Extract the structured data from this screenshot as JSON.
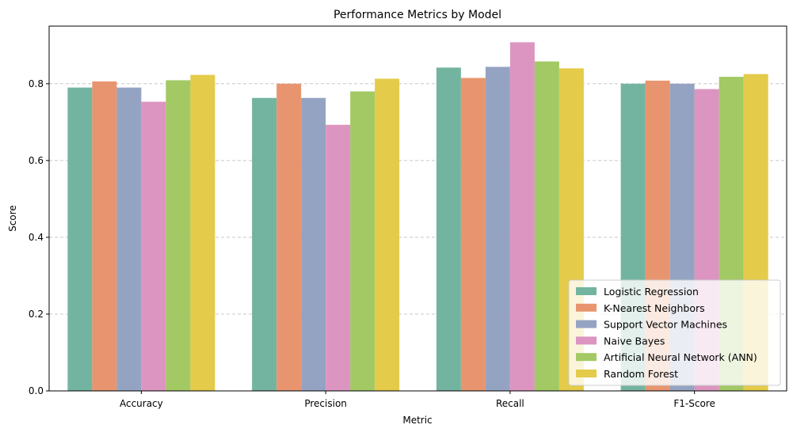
{
  "chart_data": {
    "type": "bar",
    "title": "Performance Metrics by Model",
    "xlabel": "Metric",
    "ylabel": "Score",
    "ylim": [
      0,
      0.95
    ],
    "yticks": [
      "0.0",
      "0.2",
      "0.4",
      "0.6",
      "0.8"
    ],
    "ytick_values": [
      0,
      0.2,
      0.4,
      0.6,
      0.8
    ],
    "grid": "y-dashed",
    "legend_position": "lower-right",
    "categories": [
      "Accuracy",
      "Precision",
      "Recall",
      "F1-Score"
    ],
    "series": [
      {
        "name": "Logistic Regression",
        "color": "#73b4a0",
        "values": [
          0.79,
          0.763,
          0.842,
          0.8
        ]
      },
      {
        "name": "K-Nearest Neighbors",
        "color": "#e8956f",
        "values": [
          0.806,
          0.8,
          0.815,
          0.808
        ]
      },
      {
        "name": "Support Vector Machines",
        "color": "#95a3c3",
        "values": [
          0.79,
          0.763,
          0.844,
          0.8
        ]
      },
      {
        "name": "Naive Bayes",
        "color": "#dc95c1",
        "values": [
          0.753,
          0.693,
          0.908,
          0.786
        ]
      },
      {
        "name": "Artificial Neural Network (ANN)",
        "color": "#a3c964",
        "values": [
          0.809,
          0.78,
          0.858,
          0.818
        ]
      },
      {
        "name": "Random Forest",
        "color": "#e4cb49",
        "values": [
          0.823,
          0.813,
          0.84,
          0.825
        ]
      }
    ]
  }
}
